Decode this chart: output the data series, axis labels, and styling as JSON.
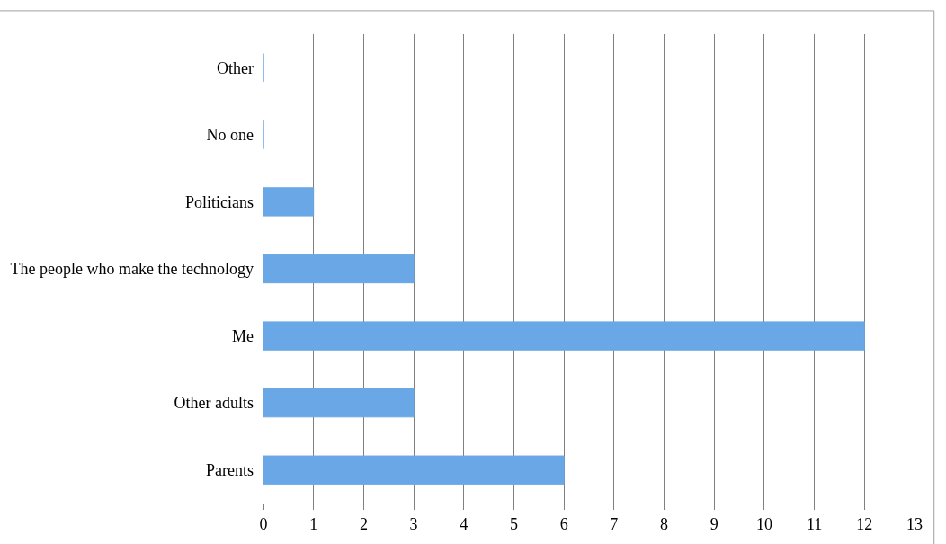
{
  "chart_data": {
    "type": "bar",
    "orientation": "horizontal",
    "categories": [
      "Other",
      "No one",
      "Politicians",
      "The people who make the technology",
      "Me",
      "Other adults",
      "Parents"
    ],
    "values": [
      0,
      0,
      1,
      3,
      12,
      3,
      6
    ],
    "color": "#6aa7e6",
    "xlim": [
      0,
      13
    ],
    "xticks": [
      0,
      1,
      2,
      3,
      4,
      5,
      6,
      7,
      8,
      9,
      10,
      11,
      12,
      13
    ],
    "grid": "x"
  }
}
